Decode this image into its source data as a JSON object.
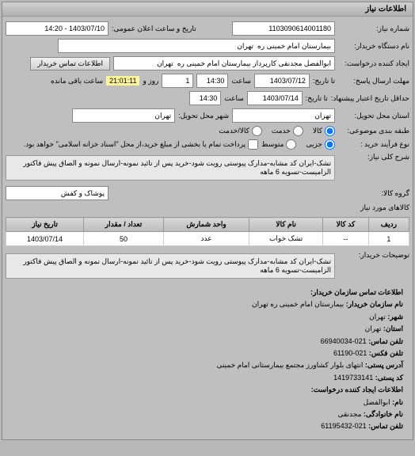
{
  "panel_title": "اطلاعات نیاز",
  "fields": {
    "request_number_label": "شماره نیاز:",
    "request_number": "1103090614001180",
    "announce_label": "تاریخ و ساعت اعلان عمومی:",
    "announce_value": "1403/07/10 - 14:20",
    "buyer_org_label": "نام دستگاه خریدار:",
    "buyer_org": "بیمارستان امام خمینی ره  تهران",
    "creator_label": "ایجاد کننده درخواست:",
    "creator": "ابوالفضل مجدنقی کارپرداز بیمارستان امام خمینی ره  تهران",
    "contact_btn": "اطلاعات تماس خریدار",
    "deadline_send_label": "مهلت ارسال پاسخ:",
    "deadline_to_label": "تا تاریخ:",
    "deadline_date": "1403/07/12",
    "time_label": "ساعت",
    "deadline_time": "14:30",
    "days_label": "روز و",
    "days_value": "1",
    "remaining_time": "21:01:11",
    "remaining_label": "ساعت باقی مانده",
    "validity_label": "حداقل تاریخ اعتبار پیشنهاد:",
    "validity_to_label": "تا تاریخ:",
    "validity_date": "1403/07/14",
    "validity_time": "14:30",
    "delivery_state_label": "استان محل تحویل:",
    "delivery_state": "تهران",
    "delivery_city_label": "شهر محل تحویل:",
    "delivery_city": "تهران",
    "package_label": "طبقه بندی موضوعی:",
    "pay_type_label": "نوع فرآیند خرید :",
    "pay_note": "پرداخت تمام یا بخشی از مبلغ خرید،از محل \"اسناد خزانه اسلامی\" خواهد بود.",
    "radio_kala": "کالا",
    "radio_khedmat": "خدمت",
    "radio_both": "کالا/خدمت",
    "radio_jozei": "جزیی",
    "radio_motevaset": "متوسط",
    "desc_label": "شرح کلی نیاز:",
    "desc_text": "تشک-ایران کد مشابه-مدارک پیوستی رویت شود-خرید پس از تائید نمونه-ارسال نمونه و الصاق پیش فاکتور الزامیست-تسویه 6 ماهه",
    "goods_group_label": "گروه کالا:",
    "goods_group": "پوشاک و کفش",
    "note_label": "توضیحات خریدار:",
    "note_text": "تشک-ایران کد مشابه-مدارک پیوستی رویت شود-خرید پس از تائید نمونه-ارسال نمونه و الصاق پیش فاکتور الزامیست-تسویه 6 ماهه"
  },
  "table": {
    "columns": [
      "ردیف",
      "کد کالا",
      "نام کالا",
      "واحد شمارش",
      "تعداد / مقدار",
      "تاریخ نیاز"
    ],
    "rows": [
      [
        "1",
        "--",
        "تشک خواب",
        "عدد",
        "50",
        "1403/07/14"
      ]
    ]
  },
  "contact": {
    "section_title": "اطلاعات تماس سازمان خریدار:",
    "org_label": "نام سازمان خریدار:",
    "org": "بیمارستان امام خمینی ره تهران",
    "city_label": "شهر:",
    "city": "تهران",
    "state_label": "استان:",
    "state": "تهران",
    "phone_label": "تلفن تماس:",
    "phone": "021-66940034",
    "fax_label": "تلفن فکس:",
    "fax": "021-61190",
    "addr_label": "آدرس پستی:",
    "addr": "انتهای بلوار کشاورز مجتمع بیمارستانی امام خمینی",
    "zip_label": "کد پستی:",
    "zip": "1419733141",
    "creator_section": "اطلاعات ایجاد کننده درخواست:",
    "name_label": "نام:",
    "name": "ابوالفضل",
    "lname_label": "نام خانوادگی:",
    "lname": "مجدنقی",
    "cphone_label": "تلفن تماس:",
    "cphone": "021-61195432"
  }
}
